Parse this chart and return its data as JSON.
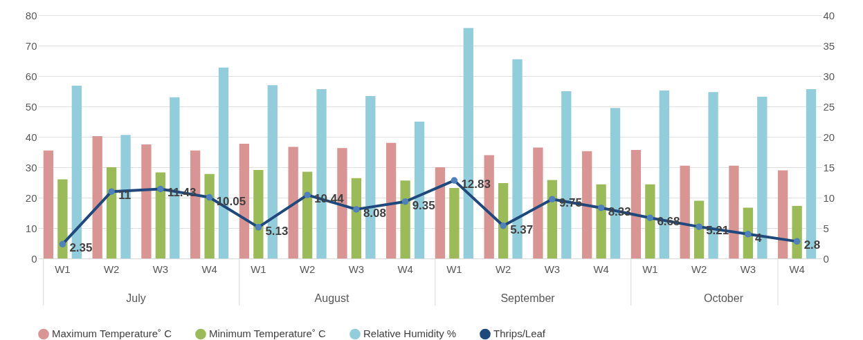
{
  "chart_data": {
    "type": "bar",
    "categories": [
      "W1",
      "W2",
      "W3",
      "W4",
      "W1",
      "W2",
      "W3",
      "W4",
      "W1",
      "W2",
      "W3",
      "W4",
      "W1",
      "W2",
      "W3",
      "W4"
    ],
    "annotations": [
      "July",
      "August",
      "September",
      "October"
    ],
    "series": [
      {
        "name": "Maximum Temperature˚ C",
        "color": "#d99594",
        "values": [
          35.5,
          40.2,
          37.5,
          35.5,
          37.7,
          36.7,
          36.3,
          38,
          30,
          34,
          36.5,
          35.3,
          35.7,
          30.5,
          30.5,
          29
        ]
      },
      {
        "name": "Minimum Temperature˚ C",
        "color": "#9bbb59",
        "values": [
          26,
          30,
          28.3,
          27.8,
          29.1,
          28.5,
          26.4,
          25.6,
          23.2,
          24.8,
          25.8,
          24.4,
          24.4,
          19,
          16.7,
          17.3
        ]
      },
      {
        "name": "Relative Humidity %",
        "color": "#92cddc",
        "values": [
          56.8,
          40.6,
          53,
          62.8,
          57,
          55.7,
          53.4,
          45,
          75.8,
          65.5,
          55,
          49.5,
          55.2,
          54.7,
          53.2,
          55.7
        ]
      },
      {
        "name": "Thrips/Leaf",
        "type": "line",
        "axis": "y2",
        "color": "#1f497d",
        "marker": "circle",
        "data_labels": true,
        "values": [
          2.35,
          11,
          11.43,
          10.05,
          5.13,
          10.44,
          8.08,
          9.35,
          12.83,
          5.37,
          9.75,
          8.33,
          6.68,
          5.21,
          4,
          2.8
        ]
      }
    ],
    "ylim": [
      0,
      80
    ],
    "yticks": [
      0,
      10,
      20,
      30,
      40,
      50,
      60,
      70,
      80
    ],
    "y2lim": [
      0,
      40
    ],
    "y2ticks": [
      0,
      5,
      10,
      15,
      20,
      25,
      30,
      35,
      40
    ],
    "grid": "y",
    "legend": "bottom"
  }
}
